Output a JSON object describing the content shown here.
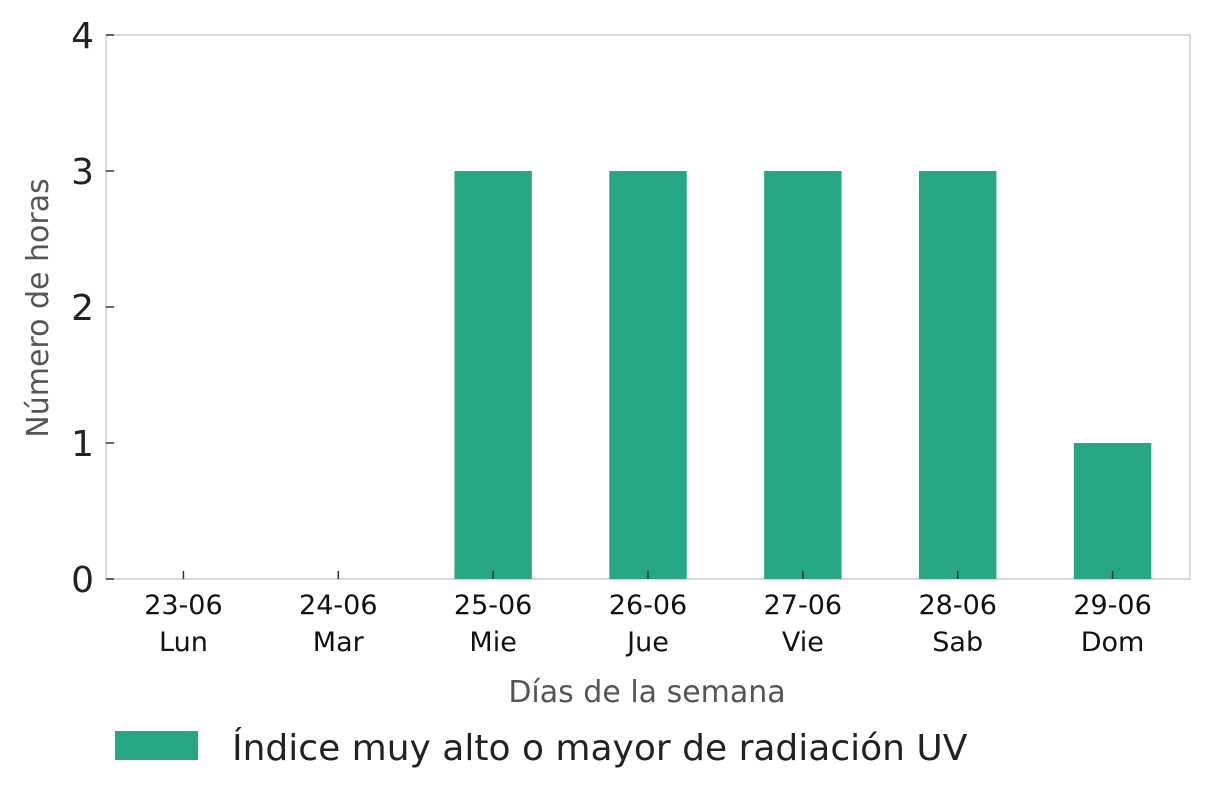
{
  "chart_data": {
    "type": "bar",
    "categories": [
      [
        "23-06",
        "Lun"
      ],
      [
        "24-06",
        "Mar"
      ],
      [
        "25-06",
        "Mie"
      ],
      [
        "26-06",
        "Jue"
      ],
      [
        "27-06",
        "Vie"
      ],
      [
        "28-06",
        "Sab"
      ],
      [
        "29-06",
        "Dom"
      ]
    ],
    "series": [
      {
        "name": "Índice muy alto o mayor de radiación UV",
        "values": [
          0,
          0,
          3,
          3,
          3,
          3,
          1
        ],
        "color": "#27a686"
      }
    ],
    "xlabel": "Días de la semana",
    "ylabel": "Número de horas",
    "ylim": [
      0,
      4
    ],
    "yticks": [
      0,
      1,
      2,
      3,
      4
    ],
    "grid": false,
    "legend_position": "bottom-left"
  }
}
